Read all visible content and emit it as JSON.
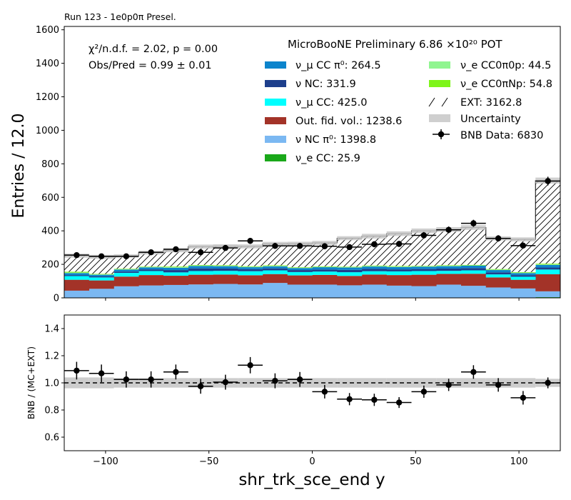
{
  "chart_data": [
    {
      "type": "bar",
      "corner_label": "Run 123 - 1e0p0π Presel.",
      "title": "MicroBooNE Preliminary 6.86 ×10²⁰ POT",
      "ylabel": "Entries / 12.0",
      "ylim": [
        0,
        1620
      ],
      "yticks": [
        0,
        200,
        400,
        600,
        800,
        1000,
        1200,
        1400,
        1600
      ],
      "xlim": [
        -120,
        120
      ],
      "bin_edges": [
        -120,
        -108,
        -96,
        -84,
        -72,
        -60,
        -48,
        -36,
        -24,
        -12,
        0,
        12,
        24,
        36,
        48,
        60,
        72,
        84,
        96,
        108,
        120
      ],
      "stats_lines": [
        "χ²/n.d.f. = 2.02, p = 0.00",
        "Obs/Pred = 0.99 ± 0.01"
      ],
      "stack_series": [
        {
          "name": "ν_e CC: 25.9",
          "color": "#1aa81a",
          "values": [
            1,
            1,
            1,
            1,
            1,
            2,
            1,
            1,
            1,
            1,
            1,
            1,
            1,
            1,
            2,
            1,
            2,
            2,
            1,
            4
          ]
        },
        {
          "name": "ν NC π⁰: 1398.8",
          "color": "#7bb8f2",
          "values": [
            42,
            53,
            68,
            73,
            76,
            78,
            82,
            79,
            88,
            78,
            78,
            74,
            78,
            72,
            68,
            78,
            70,
            60,
            55,
            35
          ]
        },
        {
          "name": "Out. fid. vol.: 1238.6",
          "color": "#a33328",
          "values": [
            65,
            50,
            58,
            62,
            55,
            58,
            56,
            55,
            53,
            55,
            58,
            56,
            60,
            63,
            68,
            64,
            72,
            60,
            52,
            102
          ]
        },
        {
          "name": "ν_μ CC: 425.0",
          "color": "#00ffff",
          "values": [
            22,
            18,
            22,
            24,
            20,
            22,
            22,
            24,
            22,
            20,
            20,
            22,
            20,
            22,
            22,
            18,
            20,
            18,
            18,
            28
          ]
        },
        {
          "name": "ν NC: 331.9",
          "color": "#1d3f8c",
          "values": [
            6,
            6,
            8,
            10,
            14,
            16,
            14,
            12,
            12,
            12,
            12,
            14,
            14,
            12,
            12,
            14,
            14,
            12,
            10,
            12
          ]
        },
        {
          "name": "ν_μ CC π⁰: 264.5",
          "color": "#0c84cc",
          "values": [
            12,
            10,
            12,
            12,
            14,
            14,
            14,
            12,
            12,
            12,
            14,
            14,
            14,
            14,
            14,
            14,
            14,
            14,
            12,
            16
          ]
        },
        {
          "name": "ν_e CC0π0p: 44.5",
          "color": "#90f590",
          "values": [
            3,
            2,
            2,
            2,
            3,
            3,
            2,
            3,
            3,
            2,
            2,
            2,
            3,
            3,
            2,
            3,
            2,
            3,
            3,
            2
          ]
        },
        {
          "name": "ν_e CC0πNp: 54.8",
          "color": "#7ef51a",
          "values": [
            5,
            3,
            3,
            3,
            4,
            3,
            4,
            3,
            3,
            3,
            3,
            3,
            3,
            3,
            3,
            3,
            3,
            3,
            3,
            5
          ]
        },
        {
          "name": "EXT: 3162.8",
          "color": "#ffffff",
          "hatch": true,
          "values": [
            96,
            102,
            76,
            83,
            97,
            110,
            113,
            118,
            128,
            140,
            140,
            170,
            175,
            193,
            209,
            213,
            223,
            183,
            195,
            496
          ]
        }
      ],
      "uncertainty_label": "Uncertainty",
      "uncertainty_halfwidth": [
        12,
        12,
        10,
        11,
        12,
        12,
        12,
        12,
        12,
        12,
        12,
        12,
        14,
        14,
        14,
        14,
        14,
        12,
        12,
        18
      ],
      "data": {
        "name": "BNB Data: 6830",
        "x": [
          -114,
          -102,
          -90,
          -78,
          -66,
          -54,
          -42,
          -30,
          -18,
          -6,
          6,
          18,
          30,
          42,
          54,
          66,
          78,
          90,
          102,
          114
        ],
        "y": [
          255,
          248,
          248,
          272,
          290,
          272,
          298,
          340,
          310,
          310,
          308,
          303,
          320,
          322,
          373,
          406,
          445,
          355,
          312,
          697
        ],
        "yerr": [
          16,
          16,
          16,
          16,
          17,
          16,
          17,
          18,
          18,
          18,
          18,
          17,
          18,
          18,
          19,
          20,
          21,
          19,
          18,
          26
        ]
      },
      "legend_position": "top-right"
    },
    {
      "type": "scatter",
      "ylabel": "BNB / (MC+EXT)",
      "xlabel": "shr_trk_sce_end y",
      "ylim": [
        0.5,
        1.5
      ],
      "yticks": [
        0.6,
        0.8,
        1.0,
        1.2,
        1.4
      ],
      "xlim": [
        -120,
        120
      ],
      "xticks": [
        -100,
        -50,
        0,
        50,
        100
      ],
      "reference_line": 1.0,
      "band_halfwidth": [
        0.04,
        0.04,
        0.035,
        0.035,
        0.035,
        0.035,
        0.035,
        0.035,
        0.035,
        0.035,
        0.035,
        0.035,
        0.035,
        0.035,
        0.035,
        0.035,
        0.035,
        0.035,
        0.035,
        0.03
      ],
      "x": [
        -114,
        -102,
        -90,
        -78,
        -66,
        -54,
        -42,
        -30,
        -18,
        -6,
        6,
        18,
        30,
        42,
        54,
        66,
        78,
        90,
        102,
        114
      ],
      "y": [
        1.09,
        1.07,
        1.025,
        1.025,
        1.08,
        0.975,
        1.005,
        1.13,
        1.015,
        1.025,
        0.935,
        0.88,
        0.875,
        0.855,
        0.935,
        0.985,
        1.08,
        0.985,
        0.89,
        1.0
      ],
      "yerr": [
        0.065,
        0.065,
        0.06,
        0.06,
        0.055,
        0.055,
        0.055,
        0.06,
        0.055,
        0.055,
        0.05,
        0.045,
        0.045,
        0.04,
        0.045,
        0.045,
        0.05,
        0.05,
        0.05,
        0.04
      ]
    }
  ]
}
